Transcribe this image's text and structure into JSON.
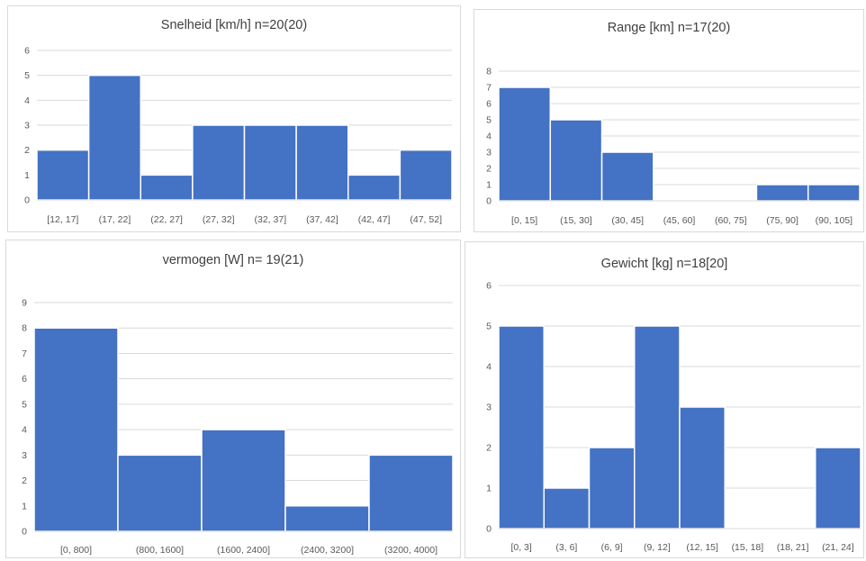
{
  "chart_data": [
    {
      "type": "bar",
      "title": "Snelheid [km/h] n=20(20)",
      "categories": [
        "[12, 17]",
        "(17, 22]",
        "(22, 27]",
        "(27, 32]",
        "(32, 37]",
        "(37, 42]",
        "(42, 47]",
        "(47, 52]"
      ],
      "values": [
        2,
        5,
        1,
        3,
        3,
        3,
        1,
        2
      ],
      "ylim": [
        0,
        6
      ],
      "yticks": [
        "0",
        "1",
        "2",
        "3",
        "4",
        "5",
        "6"
      ],
      "grid": true,
      "color": "#4472c4"
    },
    {
      "type": "bar",
      "title": "Range [km] n=17(20)",
      "categories": [
        "[0, 15]",
        "(15, 30]",
        "(30, 45]",
        "(45, 60]",
        "(60, 75]",
        "(75, 90]",
        "(90, 105]"
      ],
      "values": [
        7,
        5,
        3,
        0,
        0,
        1,
        1
      ],
      "ylim": [
        0,
        8
      ],
      "yticks": [
        "0",
        "1",
        "2",
        "3",
        "4",
        "5",
        "6",
        "7",
        "8"
      ],
      "grid": true,
      "color": "#4472c4"
    },
    {
      "type": "bar",
      "title": "vermogen [W] n= 19(21)",
      "categories": [
        "[0, 800]",
        "(800, 1600]",
        "(1600, 2400]",
        "(2400, 3200]",
        "(3200, 4000]"
      ],
      "values": [
        8,
        3,
        4,
        1,
        3
      ],
      "ylim": [
        0,
        9
      ],
      "yticks": [
        "0",
        "1",
        "2",
        "3",
        "4",
        "5",
        "6",
        "7",
        "8",
        "9"
      ],
      "grid": true,
      "color": "#4472c4"
    },
    {
      "type": "bar",
      "title": "Gewicht [kg] n=18[20]",
      "categories": [
        "[0, 3]",
        "(3, 6]",
        "(6, 9]",
        "(9, 12]",
        "(12, 15]",
        "(15, 18]",
        "(18, 21]",
        "(21, 24]"
      ],
      "values": [
        5,
        1,
        2,
        5,
        3,
        0,
        0,
        2
      ],
      "ylim": [
        0,
        6
      ],
      "yticks": [
        "0",
        "1",
        "2",
        "3",
        "4",
        "5",
        "6"
      ],
      "grid": true,
      "color": "#4472c4"
    }
  ]
}
